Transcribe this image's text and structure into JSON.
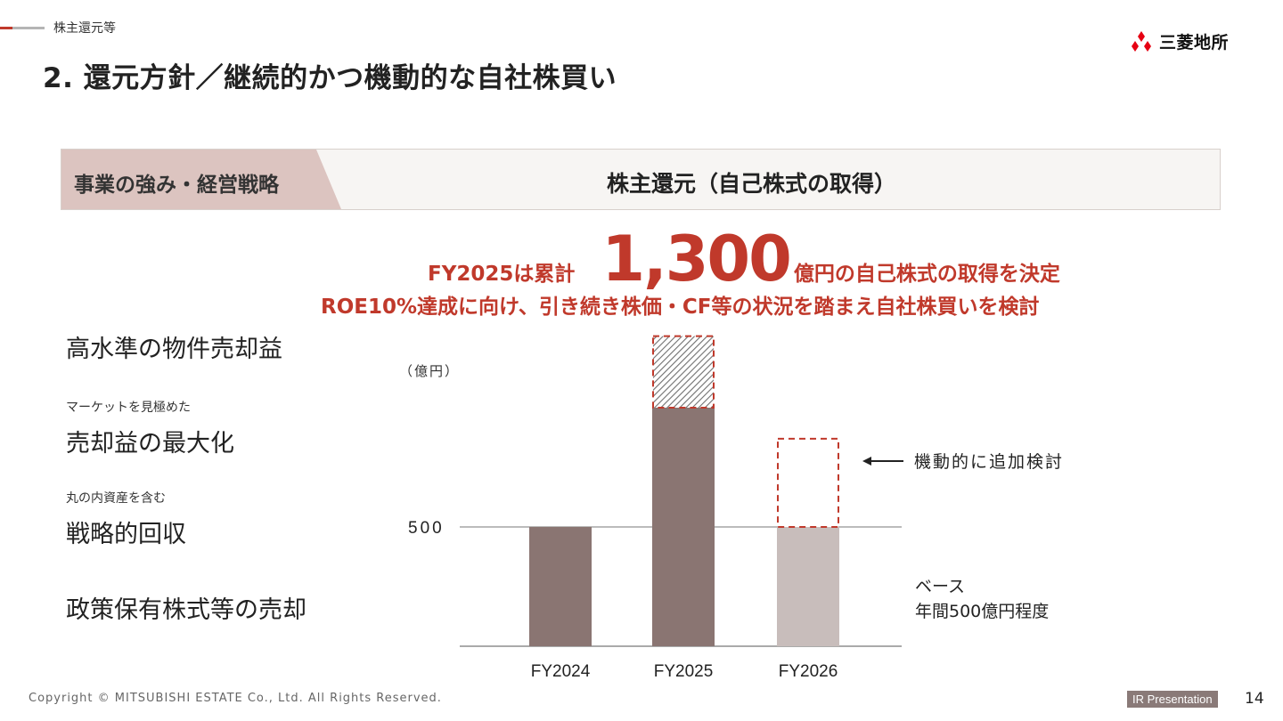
{
  "header": {
    "section_label": "株主還元等",
    "title": "2. 還元方針／継続的かつ機動的な自社株買い",
    "logo_text": "三菱地所",
    "logo_icon": "three-diamonds-icon"
  },
  "banner": {
    "left_label": "事業の強み・経営戦略",
    "right_label": "株主還元（自己株式の取得）"
  },
  "headline": {
    "prefix": "FY2025は累計",
    "amount": "1,300",
    "suffix": "億円の自己株式の取得を決定",
    "line2": "ROE10%達成に向け、引き続き株価・CF等の状況を踏まえ自社株買いを検討"
  },
  "left_items": [
    {
      "sub": "",
      "main": "高水準の物件売却益"
    },
    {
      "sub": "マーケットを見極めた",
      "main": "売却益の最大化"
    },
    {
      "sub": "丸の内資産を含む",
      "main": "戦略的回収"
    },
    {
      "sub": "",
      "main": "政策保有株式等の売却"
    }
  ],
  "chart_data": {
    "type": "bar",
    "unit_label": "（億円）",
    "categories": [
      "FY2024",
      "FY2025",
      "FY2026"
    ],
    "values": [
      500,
      1000,
      500
    ],
    "additional_dashed": [
      null,
      300,
      370
    ],
    "reference_line": {
      "value": 500,
      "label": "500"
    },
    "ylim": [
      0,
      1300
    ],
    "colors": {
      "bar_main": "#8a7572",
      "bar_future": "#c8bdbb",
      "dashed": "#c0392b",
      "hatch": "#6f6f6f"
    }
  },
  "annotations": {
    "additional": "機動的に追加検討",
    "base_line1": "ベース",
    "base_line2": "年間500億円程度"
  },
  "footer": {
    "copyright": "Copyright © MITSUBISHI ESTATE Co., Ltd. All Rights Reserved.",
    "tag": "IR Presentation",
    "page_number": "14"
  }
}
